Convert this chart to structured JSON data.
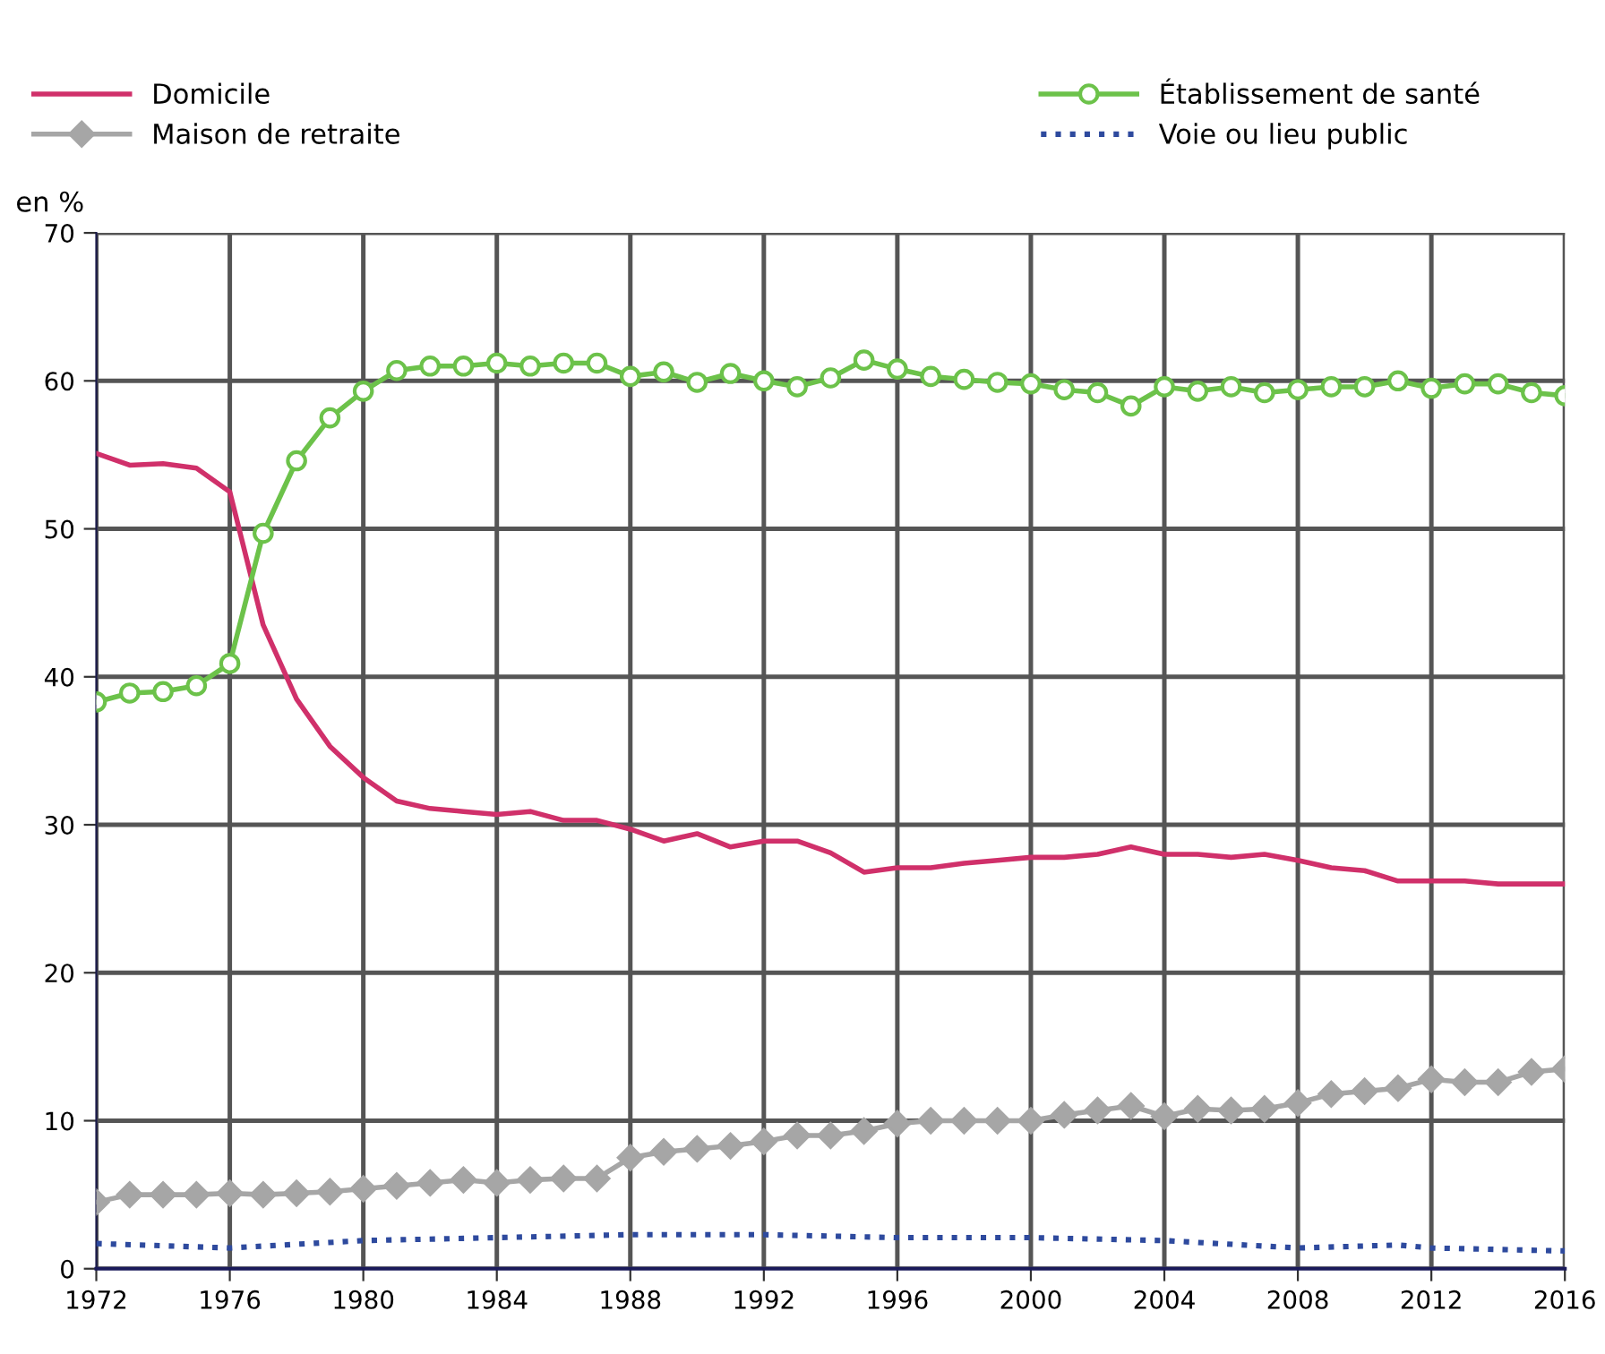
{
  "chart_data": {
    "type": "line",
    "ylabel": "en %",
    "xlim": [
      1972,
      2016
    ],
    "ylim": [
      0,
      70
    ],
    "xticks": [
      1972,
      1976,
      1980,
      1984,
      1988,
      1992,
      1996,
      2000,
      2004,
      2008,
      2012,
      2016
    ],
    "yticks": [
      0,
      10,
      20,
      30,
      40,
      50,
      60,
      70
    ],
    "grid": true,
    "legend": "top",
    "x": [
      1972,
      1973,
      1974,
      1975,
      1976,
      1977,
      1978,
      1979,
      1980,
      1981,
      1982,
      1983,
      1984,
      1985,
      1986,
      1987,
      1988,
      1989,
      1990,
      1991,
      1992,
      1993,
      1994,
      1995,
      1996,
      1997,
      1998,
      1999,
      2000,
      2001,
      2002,
      2003,
      2004,
      2005,
      2006,
      2007,
      2008,
      2009,
      2010,
      2011,
      2012,
      2013,
      2014,
      2015,
      2016
    ],
    "series": [
      {
        "name": "Domicile",
        "color": "#d0306a",
        "marker": "none",
        "line_style": "solid",
        "values": [
          55.1,
          54.3,
          54.4,
          54.1,
          52.5,
          43.5,
          38.5,
          35.3,
          33.2,
          31.6,
          31.1,
          30.9,
          30.7,
          30.9,
          30.3,
          30.3,
          29.7,
          28.9,
          29.4,
          28.5,
          28.9,
          28.9,
          28.1,
          26.8,
          27.1,
          27.1,
          27.4,
          27.6,
          27.8,
          27.8,
          28.0,
          28.5,
          28.0,
          28.0,
          27.8,
          28.0,
          27.6,
          27.1,
          26.9,
          26.2,
          26.2,
          26.2,
          26.0,
          26.0,
          26.0
        ]
      },
      {
        "name": "Établissement de santé",
        "color": "#6cc24a",
        "marker": "circle",
        "line_style": "solid",
        "values": [
          38.3,
          38.9,
          39.0,
          39.4,
          40.9,
          49.7,
          54.6,
          57.5,
          59.3,
          60.7,
          61.0,
          61.0,
          61.2,
          61.0,
          61.2,
          61.2,
          60.3,
          60.6,
          59.9,
          60.5,
          60.0,
          59.6,
          60.2,
          61.4,
          60.8,
          60.3,
          60.1,
          59.9,
          59.8,
          59.4,
          59.2,
          58.3,
          59.6,
          59.3,
          59.6,
          59.2,
          59.4,
          59.6,
          59.6,
          60.0,
          59.5,
          59.8,
          59.8,
          59.2,
          59.0
        ]
      },
      {
        "name": "Maison de retraite",
        "color": "#a6a6a6",
        "marker": "diamond",
        "line_style": "solid",
        "values": [
          4.5,
          5.0,
          5.0,
          5.0,
          5.1,
          5.0,
          5.1,
          5.2,
          5.4,
          5.6,
          5.8,
          6.0,
          5.8,
          6.0,
          6.1,
          6.1,
          7.5,
          7.9,
          8.1,
          8.3,
          8.6,
          9.0,
          9.0,
          9.3,
          9.8,
          10.0,
          10.0,
          10.0,
          10.0,
          10.4,
          10.7,
          11.0,
          10.3,
          10.8,
          10.7,
          10.8,
          11.2,
          11.8,
          12.0,
          12.2,
          12.8,
          12.6,
          12.6,
          13.3,
          13.5
        ]
      },
      {
        "name": "Voie ou lieu public",
        "color": "#2e4a9e",
        "marker": "none",
        "line_style": "dotted",
        "x": [
          1972,
          1976,
          1980,
          1984,
          1988,
          1992,
          1996,
          2000,
          2004,
          2008,
          2011,
          2012,
          2016
        ],
        "values": [
          1.7,
          1.4,
          1.9,
          2.1,
          2.3,
          2.3,
          2.1,
          2.1,
          1.9,
          1.4,
          1.6,
          1.4,
          1.2
        ]
      }
    ]
  }
}
